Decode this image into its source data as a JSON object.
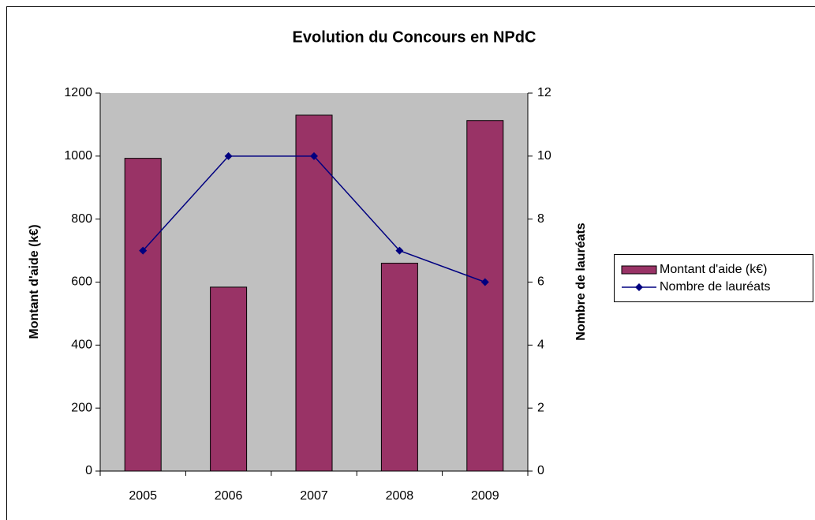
{
  "chart_data": {
    "type": "bar",
    "title": "Evolution du Concours en NPdC",
    "categories": [
      "2005",
      "2006",
      "2007",
      "2008",
      "2009"
    ],
    "series": [
      {
        "name": "Montant d'aide (k€)",
        "type": "bar",
        "color": "#993366",
        "values": [
          993,
          584,
          1130,
          660,
          1113
        ]
      },
      {
        "name": "Nombre de lauréats",
        "type": "line",
        "axis": "y2",
        "color": "#000080",
        "values": [
          7,
          10,
          10,
          7,
          6
        ]
      }
    ],
    "ylabel": "Montant d'aide (k€)",
    "y2label": "Nombre de lauréats",
    "ylim": [
      0,
      1200
    ],
    "yticks": [
      0,
      200,
      400,
      600,
      800,
      1000,
      1200
    ],
    "y2lim": [
      0,
      12
    ],
    "y2ticks": [
      0,
      2,
      4,
      6,
      8,
      10,
      12
    ],
    "grid": false,
    "legend": "right",
    "plot_background": "#c0c0c0"
  }
}
